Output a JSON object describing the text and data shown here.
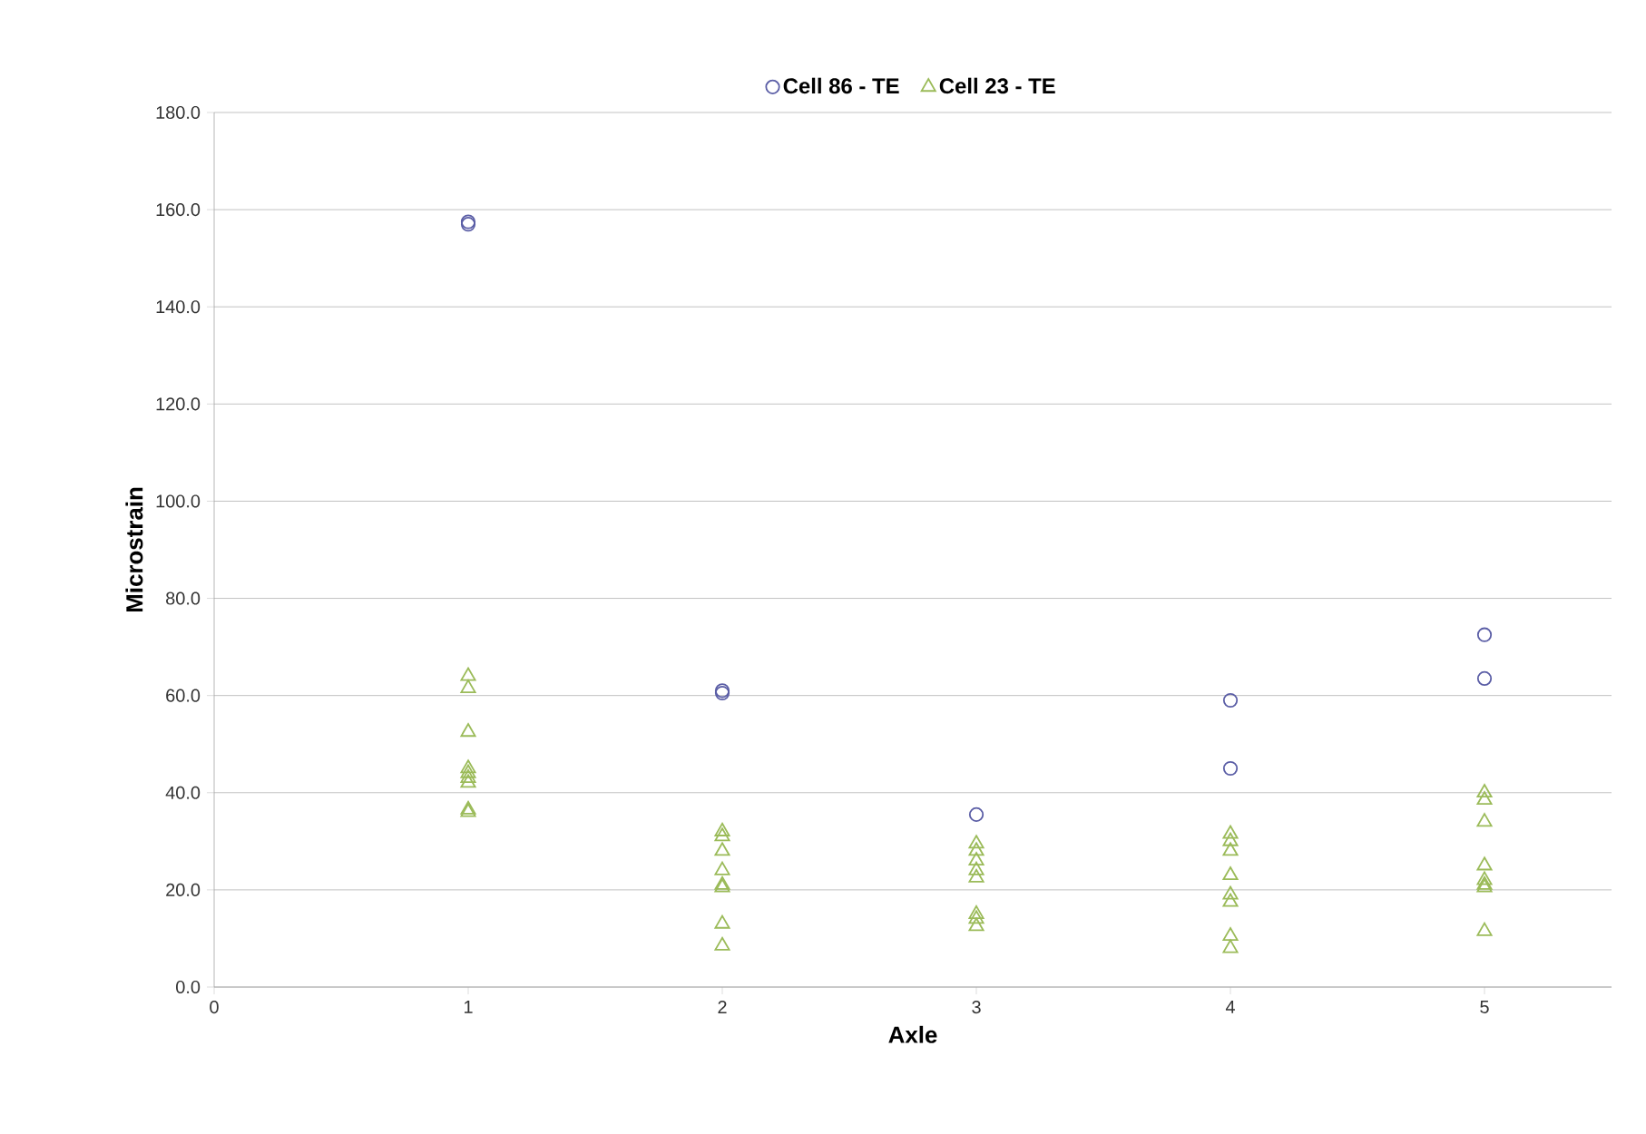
{
  "chart_data": {
    "type": "scatter",
    "xlabel": "Axle",
    "ylabel": "Microstrain",
    "xlim": [
      0,
      5.5
    ],
    "xticks": [
      0,
      1,
      2,
      3,
      4,
      5
    ],
    "ylim": [
      0,
      180
    ],
    "yticks": [
      {
        "value": 0,
        "label": "0.0"
      },
      {
        "value": 20,
        "label": "20.0"
      },
      {
        "value": 40,
        "label": "40.0"
      },
      {
        "value": 60,
        "label": "60.0"
      },
      {
        "value": 80,
        "label": "80.0"
      },
      {
        "value": 100,
        "label": "100.0"
      },
      {
        "value": 120,
        "label": "120.0"
      },
      {
        "value": 140,
        "label": "140.0"
      },
      {
        "value": 160,
        "label": "160.0"
      },
      {
        "value": 180,
        "label": "180.0"
      }
    ],
    "grid": "y",
    "legend": "top",
    "series": [
      {
        "name": "Cell 86 - TE",
        "color": "#5b5ea6",
        "marker": "circle",
        "x": [
          1,
          1,
          2,
          2,
          3,
          4,
          4,
          5,
          5
        ],
        "values": [
          157.5,
          157,
          61,
          60.5,
          35.5,
          59,
          45,
          72.5,
          63.5
        ]
      },
      {
        "name": "Cell 23 - TE",
        "color": "#9bbb59",
        "marker": "triangle",
        "x": [
          1,
          1,
          1,
          1,
          1,
          1,
          1,
          1,
          1,
          2,
          2,
          2,
          2,
          2,
          2,
          2,
          2,
          3,
          3,
          3,
          3,
          3,
          3,
          3,
          3,
          4,
          4,
          4,
          4,
          4,
          4,
          4,
          4,
          5,
          5,
          5,
          5,
          5,
          5,
          5,
          5
        ],
        "values": [
          64,
          61.5,
          52.5,
          45,
          44,
          43,
          42,
          36.5,
          36,
          32,
          31,
          28,
          24,
          21,
          20.5,
          13,
          8.5,
          29.5,
          28,
          26,
          24,
          22.5,
          15,
          14,
          12.5,
          31.5,
          30,
          28,
          23,
          19,
          17.5,
          10.5,
          8,
          40,
          38.5,
          34,
          25,
          22,
          21,
          20.5,
          11.5
        ]
      }
    ]
  }
}
